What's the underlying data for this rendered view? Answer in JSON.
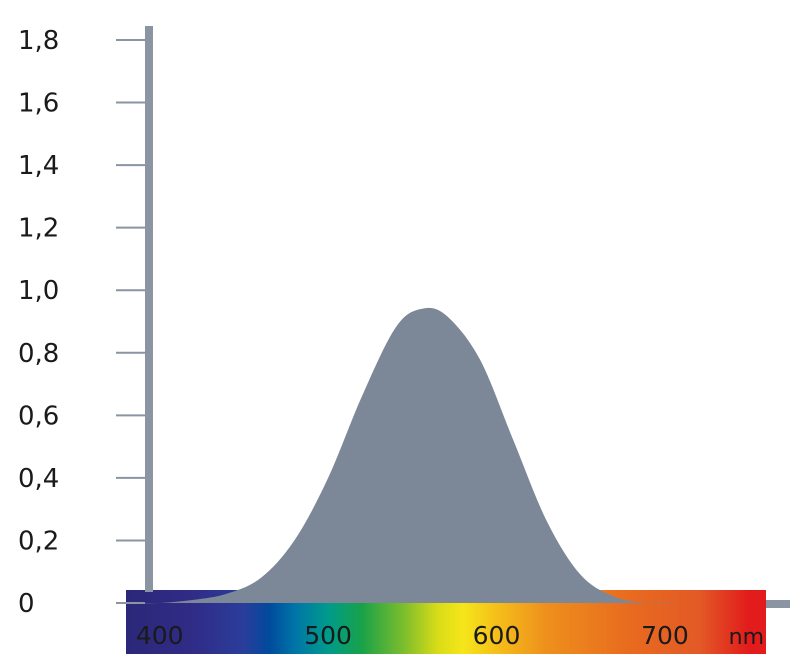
{
  "chart_data": {
    "type": "area",
    "title": "",
    "xlabel": "nm",
    "ylabel": "",
    "x_unit": "nm",
    "y_tick_labels": [
      "0",
      "0,2",
      "0,4",
      "0,6",
      "0,8",
      "1,0",
      "1,2",
      "1,4",
      "1,6",
      "1,8"
    ],
    "y_ticks": [
      0,
      0.2,
      0.4,
      0.6,
      0.8,
      1.0,
      1.2,
      1.4,
      1.6,
      1.8
    ],
    "x_tick_labels": [
      "400",
      "500",
      "600",
      "700"
    ],
    "x_ticks": [
      400,
      500,
      600,
      700
    ],
    "ylim": [
      0,
      1.8
    ],
    "xlim": [
      380,
      760
    ],
    "grid": false,
    "legend": "none",
    "area_color": "#7c8797",
    "axis_color": "#8a94a3",
    "series": [
      {
        "x": [
          380,
          400,
          420,
          440,
          460,
          480,
          500,
          520,
          540,
          555,
          570,
          590,
          610,
          630,
          650,
          670,
          690,
          710
        ],
        "values": [
          0.0,
          0.0,
          0.01,
          0.03,
          0.08,
          0.2,
          0.4,
          0.66,
          0.88,
          0.94,
          0.92,
          0.78,
          0.52,
          0.26,
          0.09,
          0.02,
          0.0,
          0.0
        ]
      }
    ],
    "spectrum_stops": [
      {
        "nm": 380,
        "color": "#2b2879"
      },
      {
        "nm": 420,
        "color": "#302c87"
      },
      {
        "nm": 450,
        "color": "#2a3d9b"
      },
      {
        "nm": 465,
        "color": "#004a9c"
      },
      {
        "nm": 480,
        "color": "#0074a8"
      },
      {
        "nm": 500,
        "color": "#009b8c"
      },
      {
        "nm": 520,
        "color": "#18a248"
      },
      {
        "nm": 545,
        "color": "#7dbd2d"
      },
      {
        "nm": 565,
        "color": "#d8dc17"
      },
      {
        "nm": 580,
        "color": "#f5e61a"
      },
      {
        "nm": 600,
        "color": "#f5bf1a"
      },
      {
        "nm": 630,
        "color": "#ee8f1c"
      },
      {
        "nm": 680,
        "color": "#e86a1f"
      },
      {
        "nm": 720,
        "color": "#e35a26"
      },
      {
        "nm": 750,
        "color": "#e21b1c"
      }
    ]
  }
}
